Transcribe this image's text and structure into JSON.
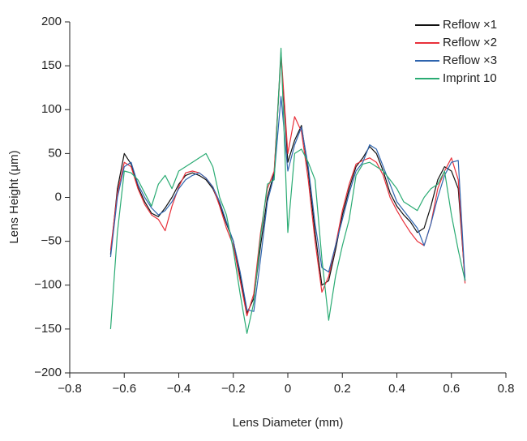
{
  "chart_data": {
    "type": "line",
    "xlabel": "Lens Diameter (mm)",
    "ylabel": "Lens Height (μm)",
    "x": [
      -0.65,
      -0.625,
      -0.6,
      -0.575,
      -0.55,
      -0.525,
      -0.5,
      -0.475,
      -0.45,
      -0.425,
      -0.4,
      -0.375,
      -0.35,
      -0.325,
      -0.3,
      -0.275,
      -0.25,
      -0.225,
      -0.2,
      -0.175,
      -0.15,
      -0.125,
      -0.1,
      -0.075,
      -0.05,
      -0.025,
      0,
      0.025,
      0.05,
      0.075,
      0.1,
      0.125,
      0.15,
      0.175,
      0.2,
      0.225,
      0.25,
      0.275,
      0.3,
      0.325,
      0.35,
      0.375,
      0.4,
      0.425,
      0.45,
      0.475,
      0.5,
      0.525,
      0.55,
      0.575,
      0.6,
      0.625,
      0.65
    ],
    "series": [
      {
        "name": "Reflow ×1",
        "color": "#111111",
        "values": [
          -65,
          10,
          50,
          38,
          12,
          -5,
          -18,
          -22,
          -12,
          0,
          15,
          25,
          28,
          25,
          20,
          10,
          -8,
          -30,
          -50,
          -90,
          -132,
          -115,
          -55,
          0,
          28,
          162,
          40,
          65,
          82,
          30,
          -40,
          -100,
          -95,
          -60,
          -20,
          10,
          35,
          45,
          58,
          50,
          30,
          5,
          -10,
          -20,
          -28,
          -40,
          -35,
          -10,
          20,
          35,
          30,
          10,
          -95
        ]
      },
      {
        "name": "Reflow ×2",
        "color": "#e8303a",
        "values": [
          -60,
          5,
          40,
          35,
          10,
          -8,
          -20,
          -25,
          -38,
          -10,
          12,
          28,
          30,
          28,
          22,
          12,
          -10,
          -35,
          -55,
          -95,
          -135,
          -110,
          -40,
          10,
          30,
          165,
          50,
          92,
          75,
          20,
          -50,
          -108,
          -90,
          -55,
          -15,
          15,
          38,
          42,
          45,
          40,
          25,
          0,
          -15,
          -28,
          -40,
          -50,
          -55,
          -30,
          10,
          30,
          45,
          20,
          -98
        ]
      },
      {
        "name": "Reflow ×3",
        "color": "#2e64ae",
        "values": [
          -68,
          0,
          35,
          40,
          15,
          0,
          -12,
          -20,
          -15,
          -5,
          10,
          20,
          25,
          28,
          22,
          12,
          -5,
          -28,
          -50,
          -85,
          -128,
          -130,
          -70,
          -5,
          25,
          115,
          30,
          60,
          80,
          35,
          -30,
          -80,
          -85,
          -55,
          -25,
          5,
          30,
          40,
          60,
          55,
          35,
          15,
          -5,
          -15,
          -25,
          -35,
          -55,
          -30,
          0,
          25,
          40,
          42,
          -95
        ]
      },
      {
        "name": "Imprint 10",
        "color": "#2aab73",
        "values": [
          -150,
          -40,
          30,
          28,
          20,
          5,
          -10,
          15,
          25,
          10,
          30,
          35,
          40,
          45,
          50,
          35,
          0,
          -20,
          -60,
          -110,
          -155,
          -120,
          -45,
          15,
          20,
          170,
          -40,
          50,
          55,
          40,
          20,
          -70,
          -140,
          -90,
          -55,
          -25,
          25,
          38,
          40,
          35,
          30,
          20,
          10,
          -5,
          -10,
          -15,
          0,
          10,
          15,
          30,
          -20,
          -60,
          -95
        ]
      }
    ],
    "xlim": [
      -0.8,
      0.8
    ],
    "xticks": [
      {
        "value": -0.8,
        "label": "−0.8"
      },
      {
        "value": -0.6,
        "label": "−0.6"
      },
      {
        "value": -0.4,
        "label": "−0.4"
      },
      {
        "value": -0.2,
        "label": "−0.2"
      },
      0,
      0.2,
      0.4,
      0.6,
      0.8
    ],
    "ylim": [
      -200,
      200
    ],
    "yticks": [
      {
        "value": -200,
        "label": "−200"
      },
      {
        "value": -150,
        "label": "−150"
      },
      {
        "value": -100,
        "label": "−100"
      },
      {
        "value": -50,
        "label": "−50"
      },
      0,
      50,
      100,
      150,
      200
    ],
    "legend": "upper right",
    "grid": false
  }
}
